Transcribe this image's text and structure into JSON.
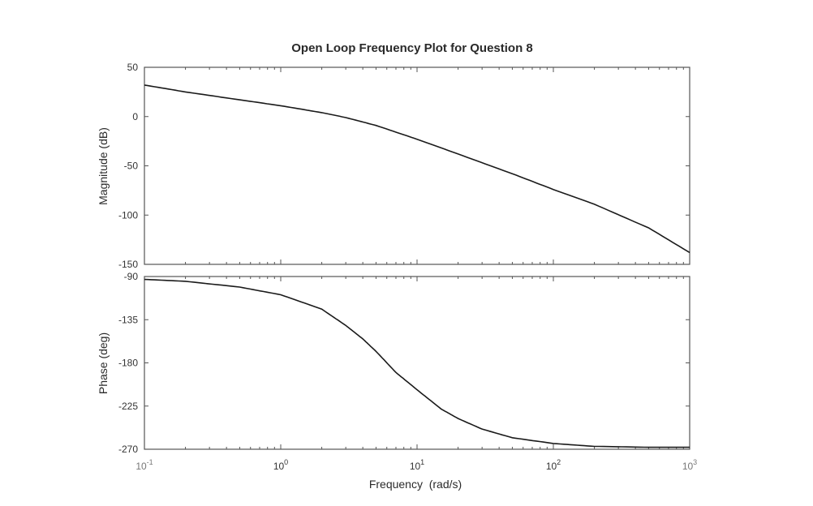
{
  "chart_data": [
    {
      "type": "line",
      "title": "Open Loop Frequency Plot for Question 8",
      "xlabel": "",
      "ylabel": "Magnitude (dB)",
      "xscale": "log",
      "xlim": [
        0.1,
        1000
      ],
      "ylim": [
        -150,
        50
      ],
      "yticks": [
        "50",
        "0",
        "-50",
        "-100",
        "-150"
      ],
      "grid": false,
      "series": [
        {
          "x": [
            0.1,
            0.2,
            0.5,
            1,
            2,
            3,
            5,
            10,
            20,
            50,
            100,
            200,
            500,
            1000
          ],
          "y": [
            32,
            25,
            17,
            11,
            4,
            -1,
            -9,
            -23,
            -38,
            -58,
            -74,
            -89,
            -113,
            -138
          ]
        }
      ]
    },
    {
      "type": "line",
      "xlabel": "Frequency  (rad/s)",
      "ylabel": "Phase (deg)",
      "xscale": "log",
      "xlim": [
        0.1,
        1000
      ],
      "ylim": [
        -270,
        -90
      ],
      "xticks": [
        {
          "base": "10",
          "exp": "-1"
        },
        {
          "base": "10",
          "exp": "0"
        },
        {
          "base": "10",
          "exp": "1"
        },
        {
          "base": "10",
          "exp": "2"
        },
        {
          "base": "10",
          "exp": "3"
        }
      ],
      "yticks": [
        "-90",
        "-135",
        "-180",
        "-225",
        "-270"
      ],
      "grid": false,
      "series": [
        {
          "x": [
            0.1,
            0.2,
            0.5,
            1,
            2,
            3,
            4,
            5,
            7,
            10,
            15,
            20,
            30,
            50,
            100,
            200,
            500,
            1000
          ],
          "y": [
            -93,
            -95,
            -101,
            -109,
            -124,
            -141,
            -155,
            -168,
            -190,
            -208,
            -228,
            -238,
            -249,
            -258,
            -264,
            -267,
            -268,
            -268
          ]
        }
      ]
    }
  ]
}
